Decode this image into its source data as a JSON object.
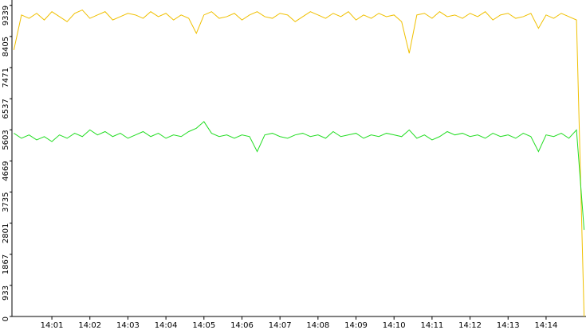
{
  "chart_data": {
    "type": "line",
    "x": [
      0,
      0.2,
      0.4,
      0.6,
      0.8,
      1,
      1.2,
      1.4,
      1.6,
      1.8,
      2,
      2.2,
      2.4,
      2.6,
      2.8,
      3,
      3.2,
      3.4,
      3.6,
      3.8,
      4,
      4.2,
      4.4,
      4.6,
      4.8,
      5,
      5.2,
      5.4,
      5.6,
      5.8,
      6,
      6.2,
      6.4,
      6.6,
      6.8,
      7,
      7.2,
      7.4,
      7.6,
      7.8,
      8,
      8.2,
      8.4,
      8.6,
      8.8,
      9,
      9.2,
      9.4,
      9.6,
      9.8,
      10,
      10.2,
      10.4,
      10.6,
      10.8,
      11,
      11.2,
      11.4,
      11.6,
      11.8,
      12,
      12.2,
      12.4,
      12.6,
      12.8,
      13,
      13.2,
      13.4,
      13.6,
      13.8,
      14,
      14.2,
      14.4,
      14.6,
      14.8,
      15
    ],
    "series": [
      {
        "color": "#f0c000",
        "values": [
          8000,
          9050,
          8950,
          9100,
          8900,
          9150,
          9000,
          8850,
          9100,
          9200,
          8950,
          9050,
          9150,
          8900,
          9000,
          9100,
          9050,
          8950,
          9150,
          9000,
          9100,
          8900,
          9050,
          8950,
          8500,
          9050,
          9150,
          8950,
          9000,
          9100,
          8900,
          9050,
          9150,
          9000,
          8950,
          9100,
          9050,
          8850,
          9000,
          9150,
          9050,
          8950,
          9100,
          9000,
          9150,
          8900,
          9050,
          8950,
          9100,
          9000,
          9050,
          8850,
          7900,
          9050,
          9100,
          8950,
          9150,
          9000,
          9050,
          8950,
          9100,
          9000,
          9150,
          8900,
          9050,
          9100,
          8950,
          9000,
          9100,
          8650,
          9050,
          8950,
          9100,
          9000,
          8900,
          0
        ]
      },
      {
        "color": "#22dd22",
        "values": [
          5500,
          5350,
          5450,
          5300,
          5400,
          5250,
          5450,
          5350,
          5500,
          5400,
          5600,
          5450,
          5550,
          5400,
          5500,
          5350,
          5450,
          5550,
          5400,
          5500,
          5350,
          5450,
          5400,
          5550,
          5650,
          5850,
          5500,
          5400,
          5450,
          5350,
          5450,
          5400,
          4950,
          5450,
          5500,
          5400,
          5350,
          5450,
          5500,
          5400,
          5450,
          5350,
          5550,
          5400,
          5450,
          5500,
          5350,
          5450,
          5400,
          5500,
          5450,
          5400,
          5600,
          5350,
          5450,
          5300,
          5400,
          5550,
          5450,
          5500,
          5400,
          5450,
          5350,
          5500,
          5400,
          5450,
          5350,
          5500,
          5400,
          4950,
          5450,
          5400,
          5500,
          5350,
          5600,
          2600
        ]
      }
    ],
    "xlim": [
      -0.05,
      15.05
    ],
    "xticks": [
      {
        "value": 1,
        "label": "14:01"
      },
      {
        "value": 2,
        "label": "14:02"
      },
      {
        "value": 3,
        "label": "14:03"
      },
      {
        "value": 4,
        "label": "14:04"
      },
      {
        "value": 5,
        "label": "14:05"
      },
      {
        "value": 6,
        "label": "14:06"
      },
      {
        "value": 7,
        "label": "14:07"
      },
      {
        "value": 8,
        "label": "14:08"
      },
      {
        "value": 9,
        "label": "14:09"
      },
      {
        "value": 10,
        "label": "14:10"
      },
      {
        "value": 11,
        "label": "14:11"
      },
      {
        "value": 12,
        "label": "14:12"
      },
      {
        "value": 13,
        "label": "14:13"
      },
      {
        "value": 14,
        "label": "14:14"
      }
    ],
    "ylim": [
      0,
      9500
    ],
    "yticks": [
      0,
      933,
      1867,
      2801,
      3735,
      4669,
      5603,
      6537,
      7471,
      8405,
      9339
    ]
  }
}
